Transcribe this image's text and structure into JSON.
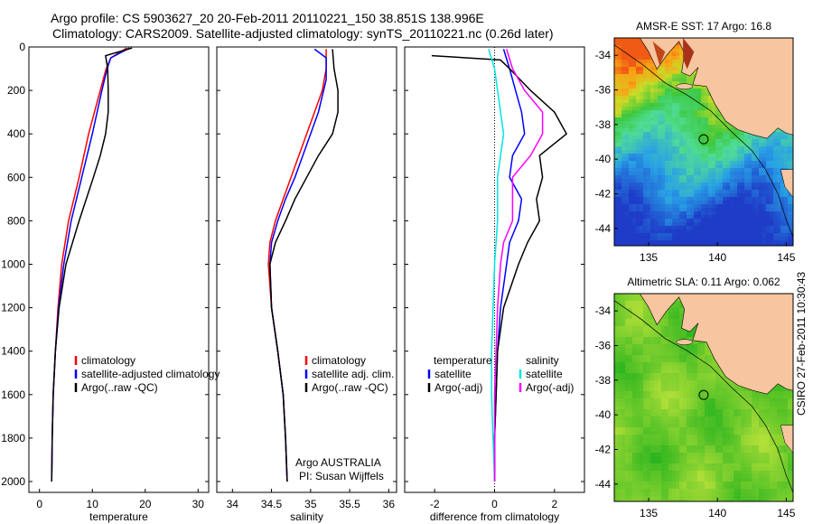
{
  "header": {
    "line1": "Argo profile: CS 5903627_20 20-Feb-2011 20110221_150 38.851S 138.996E",
    "line2": "Climatology: CARS2009. Satellite-adjusted climatology: synTS_20110221.nc (0.26d later)"
  },
  "footer": {
    "credit": "CSIRO 27-Feb-2011 10:30:43"
  },
  "colors": {
    "climatology": "#ff0000",
    "satellite": "#0000ff",
    "argo": "#000000",
    "salinity_satellite": "#00e5e5",
    "salinity_argo": "#ff00ff",
    "land": "#f7c59f"
  },
  "chart_data": [
    {
      "type": "line",
      "xlabel": "temperature",
      "ylim": [
        2050,
        0
      ],
      "xlim": [
        -2,
        32
      ],
      "xticks": [
        0,
        10,
        20,
        30
      ],
      "yticks": [
        0,
        200,
        400,
        600,
        800,
        1000,
        1200,
        1400,
        1600,
        1800,
        2000
      ],
      "legend": [
        "climatology",
        "satellite-adjusted climatology",
        "Argo(..raw -QC)"
      ],
      "series": [
        {
          "name": "climatology",
          "color": "#ff0000",
          "points": [
            [
              16.5,
              5
            ],
            [
              13.5,
              50
            ],
            [
              12.6,
              100
            ],
            [
              11.5,
              200
            ],
            [
              9.3,
              400
            ],
            [
              7.5,
              600
            ],
            [
              5.5,
              800
            ],
            [
              4.2,
              1000
            ],
            [
              3.5,
              1200
            ],
            [
              3.0,
              1400
            ],
            [
              2.6,
              1600
            ],
            [
              2.4,
              1800
            ],
            [
              2.3,
              2000
            ]
          ]
        },
        {
          "name": "satellite-adjusted climatology",
          "color": "#0000ff",
          "points": [
            [
              17.0,
              5
            ],
            [
              13.5,
              50
            ],
            [
              12.8,
              100
            ],
            [
              11.8,
              200
            ],
            [
              10.0,
              400
            ],
            [
              8.0,
              600
            ],
            [
              6.0,
              800
            ],
            [
              4.6,
              1000
            ],
            [
              3.6,
              1200
            ],
            [
              3.0,
              1400
            ],
            [
              2.6,
              1600
            ],
            [
              2.4,
              1800
            ],
            [
              2.3,
              2000
            ]
          ]
        },
        {
          "name": "Argo(..raw -QC)",
          "color": "#000000",
          "points": [
            [
              17.5,
              5
            ],
            [
              12.5,
              40
            ],
            [
              12.9,
              100
            ],
            [
              13.0,
              200
            ],
            [
              13.0,
              300
            ],
            [
              12.5,
              400
            ],
            [
              11.5,
              500
            ],
            [
              10.2,
              600
            ],
            [
              7.5,
              800
            ],
            [
              5.0,
              1000
            ],
            [
              3.7,
              1200
            ],
            [
              3.0,
              1400
            ],
            [
              2.6,
              1600
            ],
            [
              2.4,
              1800
            ],
            [
              2.3,
              2000
            ]
          ]
        }
      ]
    },
    {
      "type": "line",
      "xlabel": "salinity",
      "ylim": [
        2050,
        0
      ],
      "xlim": [
        33.8,
        36.1
      ],
      "xticks": [
        34,
        34.5,
        35,
        35.5,
        36
      ],
      "legend": [
        "climatology",
        "satellite adj. clim.",
        "Argo(..raw -QC)"
      ],
      "annotation": [
        "Argo AUSTRALIA",
        "PI: Susan Wijffels"
      ],
      "series": [
        {
          "name": "climatology",
          "color": "#ff0000",
          "points": [
            [
              35.2,
              10
            ],
            [
              35.2,
              100
            ],
            [
              35.15,
              200
            ],
            [
              35.05,
              300
            ],
            [
              34.95,
              400
            ],
            [
              34.85,
              500
            ],
            [
              34.75,
              600
            ],
            [
              34.65,
              700
            ],
            [
              34.55,
              800
            ],
            [
              34.48,
              900
            ],
            [
              34.46,
              1000
            ],
            [
              34.5,
              1200
            ],
            [
              34.58,
              1400
            ],
            [
              34.65,
              1600
            ],
            [
              34.68,
              1800
            ],
            [
              34.7,
              2000
            ]
          ]
        },
        {
          "name": "satellite adj. clim.",
          "color": "#0000ff",
          "points": [
            [
              35.05,
              10
            ],
            [
              35.2,
              50
            ],
            [
              35.2,
              150
            ],
            [
              35.1,
              300
            ],
            [
              35.0,
              400
            ],
            [
              34.9,
              500
            ],
            [
              34.8,
              600
            ],
            [
              34.68,
              700
            ],
            [
              34.58,
              800
            ],
            [
              34.5,
              900
            ],
            [
              34.48,
              1000
            ],
            [
              34.5,
              1200
            ],
            [
              34.58,
              1400
            ],
            [
              34.65,
              1600
            ],
            [
              34.68,
              1800
            ],
            [
              34.7,
              2000
            ]
          ]
        },
        {
          "name": "Argo(..raw -QC)",
          "color": "#000000",
          "points": [
            [
              35.28,
              10
            ],
            [
              35.3,
              100
            ],
            [
              35.35,
              200
            ],
            [
              35.35,
              300
            ],
            [
              35.28,
              400
            ],
            [
              35.1,
              500
            ],
            [
              34.95,
              600
            ],
            [
              34.8,
              700
            ],
            [
              34.68,
              800
            ],
            [
              34.55,
              900
            ],
            [
              34.48,
              1000
            ],
            [
              34.5,
              1200
            ],
            [
              34.58,
              1400
            ],
            [
              34.65,
              1600
            ],
            [
              34.68,
              1800
            ],
            [
              34.7,
              2000
            ]
          ]
        }
      ]
    },
    {
      "type": "line",
      "xlabel": "difference from climatology",
      "ylim": [
        2050,
        0
      ],
      "xlim": [
        -3,
        3
      ],
      "xticks": [
        -2,
        0,
        2
      ],
      "legend_temperature": [
        "temperature",
        "satellite",
        "Argo(-adj)"
      ],
      "legend_salinity": [
        "salinity",
        "satellite",
        "Argo(-adj)"
      ],
      "series": [
        {
          "name": "temperature satellite",
          "color": "#0000ff",
          "points": [
            [
              0.3,
              10
            ],
            [
              0.5,
              100
            ],
            [
              0.7,
              200
            ],
            [
              0.9,
              300
            ],
            [
              1.0,
              400
            ],
            [
              0.6,
              500
            ],
            [
              0.5,
              600
            ],
            [
              0.9,
              700
            ],
            [
              0.8,
              800
            ],
            [
              0.5,
              900
            ],
            [
              0.4,
              1000
            ],
            [
              0.2,
              1200
            ],
            [
              0.1,
              1400
            ],
            [
              0.05,
              1600
            ],
            [
              0.0,
              1800
            ],
            [
              0.0,
              2000
            ]
          ]
        },
        {
          "name": "temperature Argo(-adj)",
          "color": "#000000",
          "points": [
            [
              -2.1,
              40
            ],
            [
              0.2,
              60
            ],
            [
              0.5,
              100
            ],
            [
              1.2,
              200
            ],
            [
              2.0,
              300
            ],
            [
              2.4,
              400
            ],
            [
              1.5,
              500
            ],
            [
              1.6,
              600
            ],
            [
              1.4,
              700
            ],
            [
              1.5,
              800
            ],
            [
              1.1,
              900
            ],
            [
              0.8,
              1000
            ],
            [
              0.3,
              1200
            ],
            [
              0.1,
              1400
            ],
            [
              0.05,
              1600
            ],
            [
              0.0,
              1800
            ],
            [
              0.0,
              2000
            ]
          ]
        },
        {
          "name": "salinity satellite",
          "color": "#00e5e5",
          "points": [
            [
              -0.2,
              10
            ],
            [
              0.0,
              100
            ],
            [
              0.1,
              200
            ],
            [
              0.2,
              300
            ],
            [
              0.3,
              400
            ],
            [
              0.2,
              500
            ],
            [
              0.1,
              600
            ],
            [
              0.1,
              800
            ],
            [
              0.0,
              1000
            ],
            [
              -0.05,
              1200
            ],
            [
              -0.1,
              1400
            ],
            [
              -0.1,
              1600
            ],
            [
              -0.05,
              1800
            ],
            [
              0.0,
              2000
            ]
          ]
        },
        {
          "name": "salinity Argo(-adj)",
          "color": "#ff00ff",
          "points": [
            [
              0.4,
              10
            ],
            [
              0.6,
              100
            ],
            [
              1.0,
              200
            ],
            [
              1.6,
              300
            ],
            [
              1.6,
              400
            ],
            [
              1.2,
              500
            ],
            [
              0.6,
              600
            ],
            [
              0.6,
              700
            ],
            [
              0.6,
              800
            ],
            [
              0.3,
              900
            ],
            [
              0.2,
              1000
            ],
            [
              0.1,
              1200
            ],
            [
              0.05,
              1400
            ],
            [
              0.0,
              1600
            ],
            [
              0.0,
              1800
            ],
            [
              0.0,
              2000
            ]
          ]
        }
      ]
    },
    {
      "type": "heatmap",
      "title": "AMSR-E SST: 17 Argo: 16.8",
      "xlim": [
        132.5,
        145.5
      ],
      "ylim": [
        -45,
        -33
      ],
      "xticks": [
        135,
        140,
        145
      ],
      "yticks": [
        -34,
        -36,
        -38,
        -40,
        -42,
        -44
      ],
      "marker": [
        138.996,
        -38.851
      ]
    },
    {
      "type": "heatmap",
      "title": "Altimetric SLA: 0.11 Argo: 0.062",
      "xlim": [
        132.5,
        145.5
      ],
      "ylim": [
        -45,
        -33
      ],
      "xticks": [
        135,
        140,
        145
      ],
      "yticks": [
        -34,
        -36,
        -38,
        -40,
        -42,
        -44
      ],
      "marker": [
        138.996,
        -38.851
      ]
    }
  ]
}
